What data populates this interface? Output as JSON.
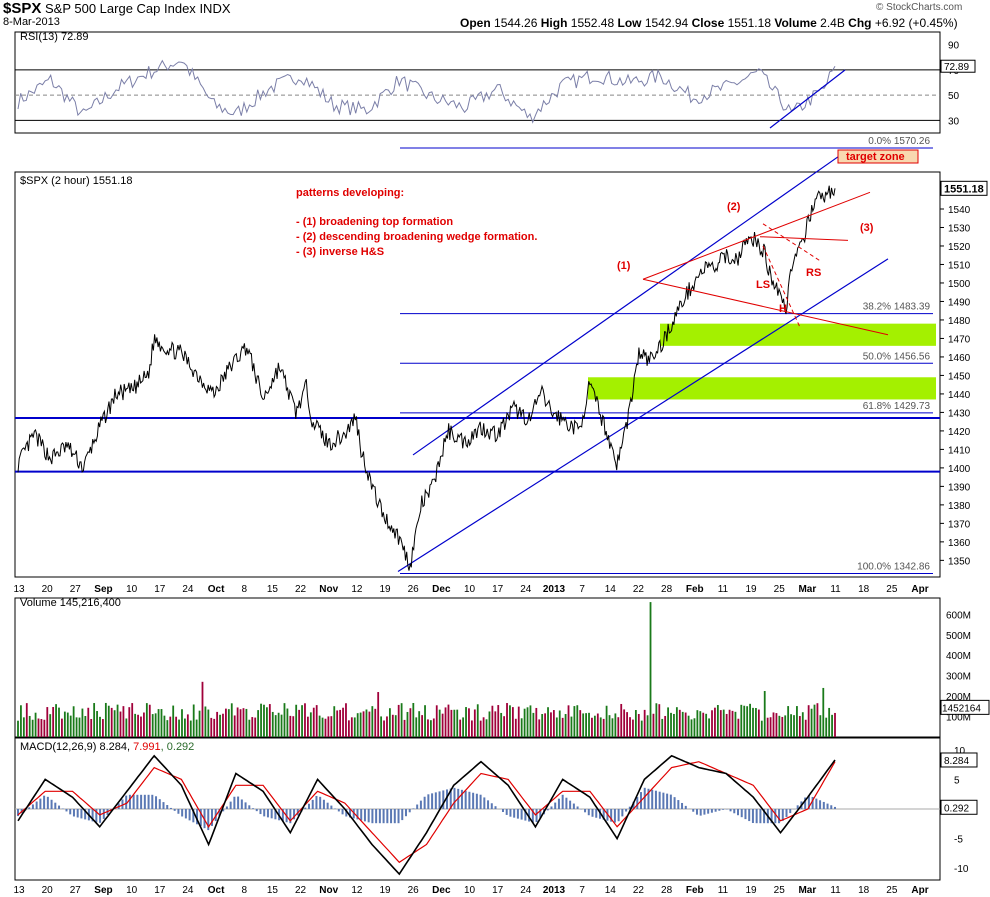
{
  "header": {
    "symbol": "$SPX",
    "name": "S&P 500 Large Cap Index",
    "exchange": "INDX",
    "date": "8-Mar-2013",
    "open_label": "Open",
    "open": "1544.26",
    "high_label": "High",
    "high": "1552.48",
    "low_label": "Low",
    "low": "1542.94",
    "close_label": "Close",
    "close": "1551.18",
    "volume_label": "Volume",
    "volume": "2.4B",
    "chg_label": "Chg",
    "chg": "+6.92 (+0.45%)",
    "watermark": "© StockCharts.com"
  },
  "colors": {
    "axis": "#000000",
    "grid": "#e6e6e6",
    "price": "#000000",
    "trend_blue": "#0000cc",
    "pattern_red": "#e00000",
    "zone": "#a4f000",
    "vol_up": "#1a7a1a",
    "vol_down": "#a0003a",
    "macd": "#000000",
    "signal": "#e00000",
    "hist": "#5a78b4",
    "rsi": "#7b7fa8",
    "target_zone_bg": "#f8d8b0"
  },
  "chart_data": [
    {
      "type": "line",
      "panel": "rsi",
      "label": "RSI(13) 72.89",
      "current": 72.89,
      "ylim": [
        20,
        100
      ],
      "yticks": [
        10,
        30,
        50,
        70,
        90
      ],
      "reference_lines": [
        30,
        50,
        70
      ],
      "x": [
        0,
        6,
        12,
        18,
        24,
        30,
        36,
        40,
        46,
        52,
        58,
        64,
        70,
        76,
        82,
        88,
        94,
        100,
        106,
        112,
        118,
        124,
        130,
        136,
        142,
        148,
        150
      ],
      "values": [
        45,
        62,
        34,
        55,
        68,
        78,
        42,
        35,
        55,
        66,
        42,
        38,
        62,
        48,
        40,
        55,
        32,
        58,
        66,
        60,
        65,
        48,
        56,
        68,
        35,
        55,
        72.89
      ]
    },
    {
      "type": "line",
      "panel": "price",
      "label": "$SPX (2 hour) 1551.18",
      "current": 1551.18,
      "ylim": [
        1341,
        1560
      ],
      "yticks": [
        1350,
        1360,
        1370,
        1380,
        1390,
        1400,
        1410,
        1420,
        1430,
        1440,
        1450,
        1460,
        1470,
        1480,
        1490,
        1500,
        1510,
        1520,
        1530,
        1540,
        1550
      ],
      "x_tick_labels": [
        "13",
        "20",
        "27",
        "Sep",
        "10",
        "17",
        "24",
        "Oct",
        "8",
        "15",
        "22",
        "Nov",
        "12",
        "19",
        "26",
        "Dec",
        "10",
        "17",
        "24",
        "2013",
        "7",
        "14",
        "22",
        "28",
        "Feb",
        "11",
        "19",
        "25",
        "Mar",
        "11",
        "18",
        "25",
        "Apr"
      ],
      "x": [
        0,
        3,
        6,
        9,
        12,
        15,
        18,
        21,
        24,
        25,
        27,
        30,
        33,
        36,
        39,
        42,
        45,
        48,
        51,
        53,
        54,
        57,
        60,
        62,
        63,
        65,
        67,
        70,
        72,
        74,
        76,
        78,
        79,
        82,
        85,
        88,
        91,
        94,
        96,
        98,
        100,
        103,
        105,
        108,
        110,
        112,
        114,
        116,
        118,
        120,
        122,
        124,
        126,
        128,
        130,
        132,
        133,
        135,
        137,
        138,
        140,
        141,
        142,
        143,
        144,
        146,
        148,
        150
      ],
      "values": [
        1402,
        1418,
        1405,
        1412,
        1400,
        1422,
        1440,
        1442,
        1451,
        1470,
        1465,
        1462,
        1450,
        1440,
        1455,
        1466,
        1437,
        1455,
        1430,
        1444,
        1426,
        1413,
        1418,
        1428,
        1410,
        1390,
        1375,
        1362,
        1347,
        1380,
        1389,
        1410,
        1420,
        1414,
        1422,
        1418,
        1432,
        1426,
        1441,
        1430,
        1426,
        1420,
        1445,
        1420,
        1402,
        1427,
        1462,
        1458,
        1466,
        1478,
        1490,
        1500,
        1508,
        1508,
        1515,
        1512,
        1520,
        1524,
        1517,
        1505,
        1495,
        1485,
        1510,
        1515,
        1520,
        1544,
        1547,
        1551.18
      ],
      "fibonacci": [
        {
          "level": "0.0%",
          "value": 1570.26
        },
        {
          "level": "38.2%",
          "value": 1483.39
        },
        {
          "level": "50.0%",
          "value": 1456.56
        },
        {
          "level": "61.8%",
          "value": 1429.73
        },
        {
          "level": "100.0%",
          "value": 1342.86
        }
      ],
      "horizontal_lines": [
        1427,
        1398
      ],
      "support_zones": [
        [
          1466,
          1478
        ],
        [
          1437,
          1449
        ]
      ],
      "annotations": {
        "heading": "patterns developing:",
        "items": [
          "-  (1)  broadening top formation",
          "-  (2)  descending broadening wedge formation.",
          "-  (3) inverse H&S"
        ],
        "target_zone": "target zone",
        "marker_1": "(1)",
        "marker_2": "(2)",
        "marker_3": "(3)",
        "ls": "LS",
        "h": "H",
        "rs": "RS"
      }
    },
    {
      "type": "bar",
      "panel": "volume",
      "label": "Volume 145,216,400",
      "current_tag": "1452164",
      "ylim": [
        0,
        680
      ],
      "yticks_label": [
        "100M",
        "200M",
        "300M",
        "400M",
        "500M",
        "600M"
      ],
      "yticks": [
        100,
        200,
        300,
        400,
        500,
        600
      ],
      "spikes": [
        {
          "x": 34,
          "value": 270
        },
        {
          "x": 66,
          "value": 220
        },
        {
          "x": 116,
          "value": 660
        },
        {
          "x": 137,
          "value": 225
        },
        {
          "x": 148,
          "value": 240
        }
      ],
      "baseline_level": 145
    },
    {
      "type": "line",
      "panel": "macd",
      "label": "MACD(12,26,9)",
      "macd_value": "8.284",
      "signal_value": "7.991",
      "hist_value": "0.292",
      "ylim": [
        -12,
        12
      ],
      "yticks": [
        -10,
        -5,
        0,
        5,
        10
      ],
      "x": [
        0,
        5,
        10,
        15,
        20,
        25,
        30,
        35,
        40,
        45,
        50,
        55,
        60,
        65,
        70,
        75,
        80,
        85,
        90,
        95,
        100,
        105,
        110,
        115,
        120,
        125,
        130,
        135,
        140,
        145,
        150
      ],
      "macd": [
        -2,
        5,
        2,
        -3,
        3,
        9,
        4,
        -6,
        6,
        3,
        -4,
        5,
        0,
        -6,
        -11,
        -4,
        4,
        8,
        4,
        -3,
        5,
        2,
        -5,
        5,
        9,
        7,
        6,
        2,
        -4,
        2,
        8.284
      ],
      "signal": [
        -1,
        3,
        3,
        -1,
        1,
        7,
        5,
        -3,
        4,
        4,
        -2,
        3,
        1,
        -4,
        -9,
        -6,
        1,
        6,
        5,
        -1,
        3,
        3,
        -3,
        2,
        7,
        8,
        6,
        4,
        -2,
        0,
        7.991
      ]
    }
  ]
}
